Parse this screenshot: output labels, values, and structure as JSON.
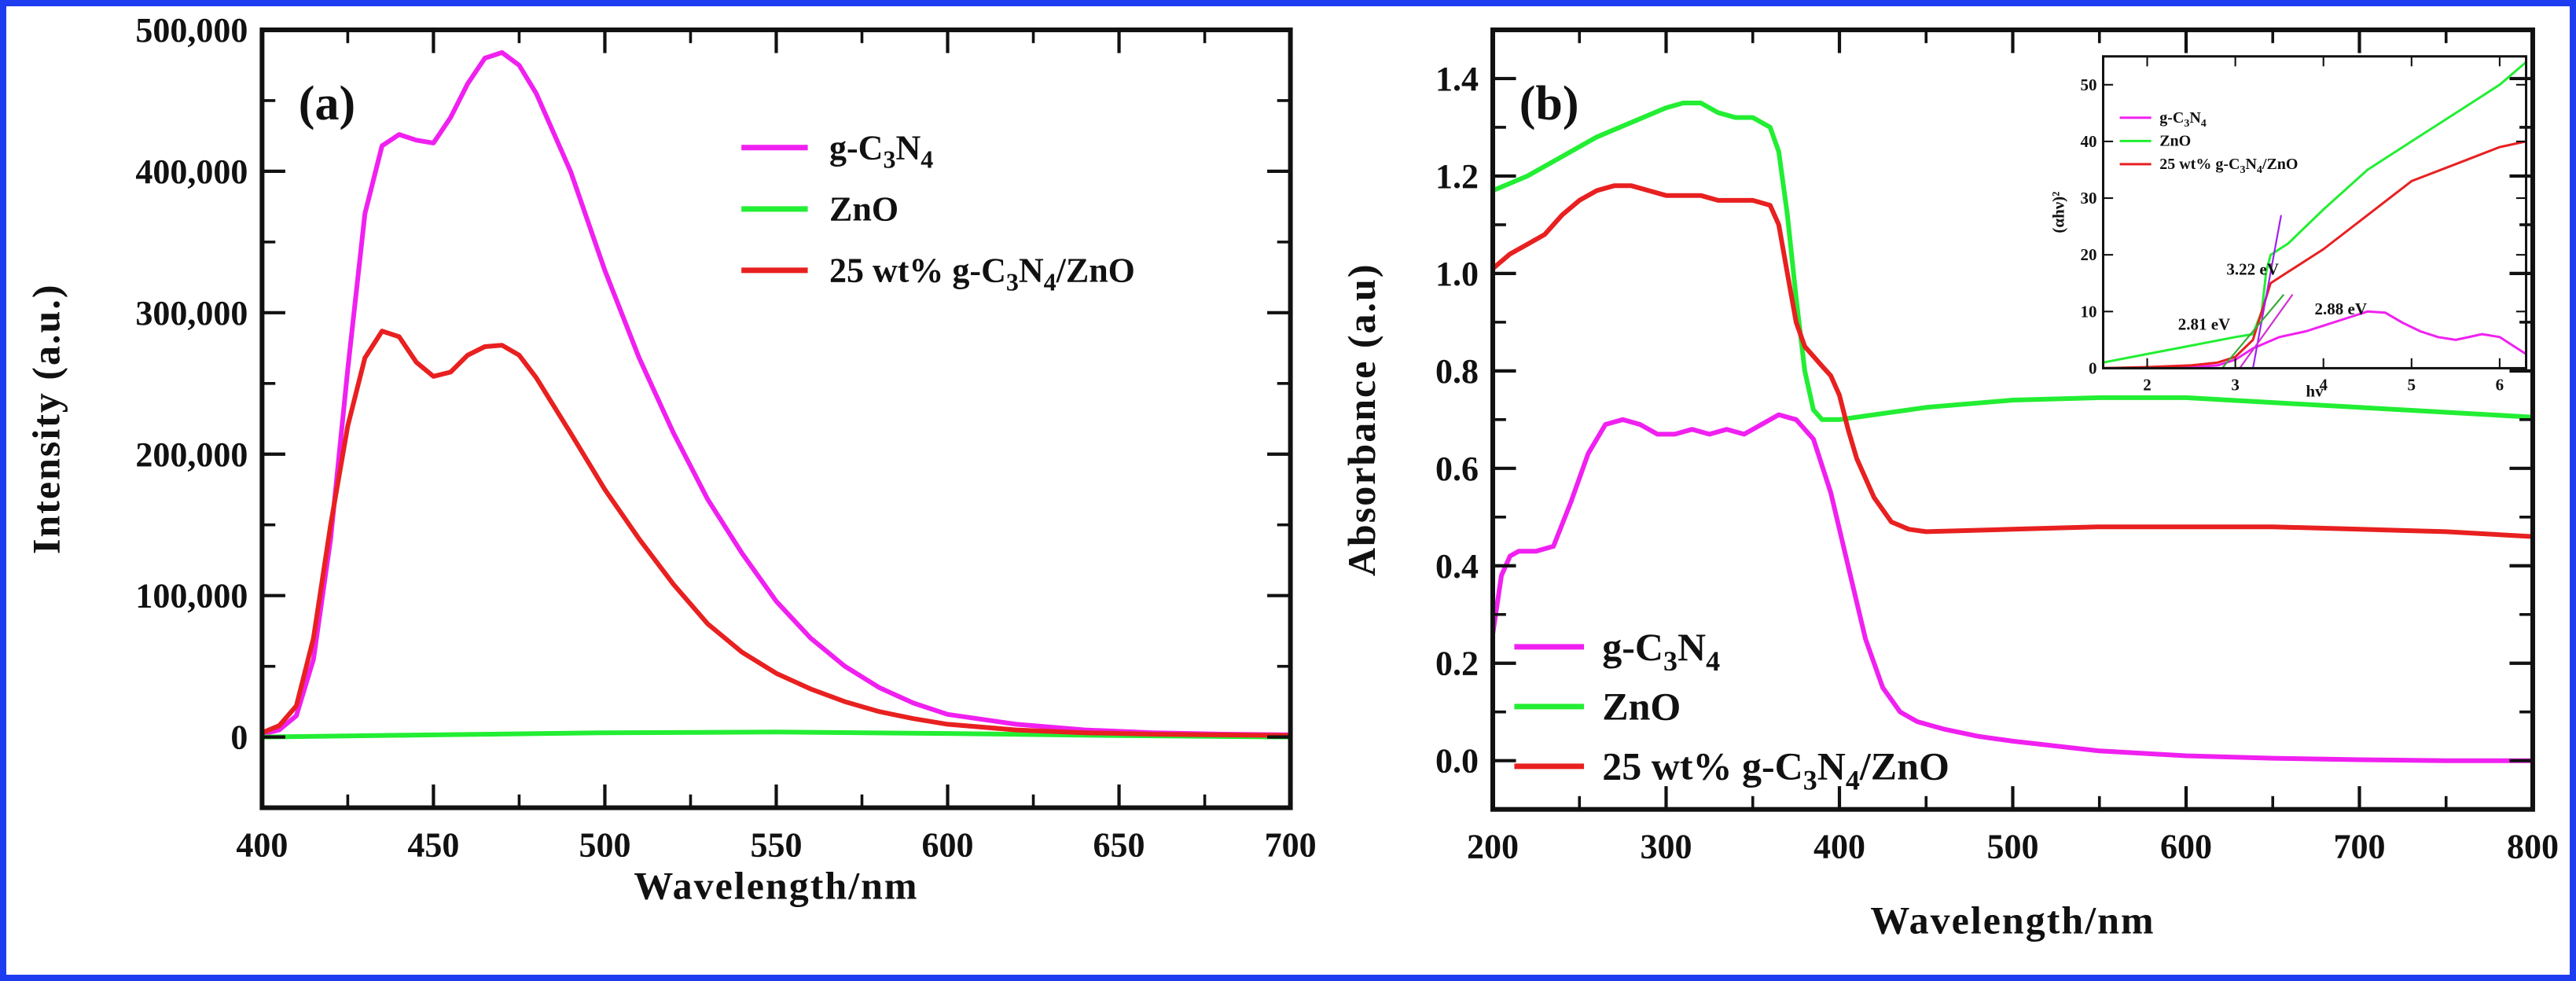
{
  "colors": {
    "border": "#1E3CF0",
    "magenta": "#F020F0",
    "green": "#22EE33",
    "red": "#E82020",
    "axis": "#111111"
  },
  "chart_data": [
    {
      "panel": "(a)",
      "type": "line",
      "xlabel": "Wavelength/nm",
      "ylabel": "Intensity (a.u.)",
      "xlim": [
        400,
        700
      ],
      "ylim": [
        -50000,
        500000
      ],
      "xticks": [
        400,
        450,
        500,
        550,
        600,
        650,
        700
      ],
      "xtick_labels": [
        "400",
        "450",
        "500",
        "550",
        "600",
        "650",
        "700"
      ],
      "yticks": [
        0,
        100000,
        200000,
        300000,
        400000,
        500000
      ],
      "ytick_labels": [
        "0",
        "100,000",
        "200,000",
        "300,000",
        "400,000",
        "500,000"
      ],
      "legend": [
        {
          "text": "g-C3N4",
          "parts": [
            "g-C",
            "3",
            "N",
            "4"
          ],
          "color": "magenta"
        },
        {
          "text": "ZnO",
          "parts": [
            "ZnO"
          ],
          "color": "green"
        },
        {
          "text": "25 wt% g-C3N4/ZnO",
          "parts": [
            "25 wt% g-C",
            "3",
            "N",
            "4",
            "/ZnO"
          ],
          "color": "red"
        }
      ],
      "series": [
        {
          "name": "g-C3N4",
          "color": "magenta",
          "x": [
            400,
            405,
            410,
            415,
            420,
            425,
            430,
            435,
            440,
            445,
            450,
            455,
            460,
            465,
            470,
            475,
            480,
            490,
            500,
            510,
            520,
            530,
            540,
            550,
            560,
            570,
            580,
            590,
            600,
            620,
            640,
            660,
            680,
            700
          ],
          "y": [
            2000,
            5000,
            15000,
            55000,
            140000,
            260000,
            370000,
            418000,
            426000,
            422000,
            420000,
            438000,
            462000,
            480000,
            484000,
            475000,
            455000,
            400000,
            330000,
            268000,
            215000,
            168000,
            130000,
            96000,
            70000,
            50000,
            35000,
            24000,
            16000,
            9000,
            5000,
            3000,
            2000,
            1500
          ]
        },
        {
          "name": "ZnO",
          "color": "green",
          "x": [
            400,
            450,
            500,
            550,
            600,
            650,
            700
          ],
          "y": [
            0,
            1500,
            3000,
            3500,
            2500,
            1000,
            0
          ]
        },
        {
          "name": "25 wt% g-C3N4/ZnO",
          "color": "red",
          "x": [
            400,
            405,
            410,
            415,
            420,
            425,
            430,
            435,
            440,
            445,
            450,
            455,
            460,
            465,
            470,
            475,
            480,
            490,
            500,
            510,
            520,
            530,
            540,
            550,
            560,
            570,
            580,
            590,
            600,
            620,
            640,
            660,
            680,
            700
          ],
          "y": [
            3000,
            8000,
            22000,
            70000,
            150000,
            220000,
            268000,
            287000,
            283000,
            265000,
            255000,
            258000,
            270000,
            276000,
            277000,
            270000,
            254000,
            215000,
            175000,
            140000,
            108000,
            80000,
            60000,
            45000,
            34000,
            25000,
            18000,
            13000,
            9000,
            5000,
            3000,
            2000,
            1500,
            1000
          ]
        }
      ]
    },
    {
      "panel": "(b)",
      "type": "line",
      "xlabel": "Wavelength/nm",
      "ylabel": "Absorbance (a.u)",
      "xlim": [
        200,
        800
      ],
      "ylim": [
        -0.1,
        1.5
      ],
      "xticks": [
        200,
        300,
        400,
        500,
        600,
        700,
        800
      ],
      "xtick_labels": [
        "200",
        "300",
        "400",
        "500",
        "600",
        "700",
        "800"
      ],
      "yticks": [
        0.0,
        0.2,
        0.4,
        0.6,
        0.8,
        1.0,
        1.2,
        1.4
      ],
      "ytick_labels": [
        "0.0",
        "0.2",
        "0.4",
        "0.6",
        "0.8",
        "1.0",
        "1.2",
        "1.4"
      ],
      "legend": [
        {
          "text": "g-C3N4",
          "parts": [
            "g-C",
            "3",
            "N",
            "4"
          ],
          "color": "magenta"
        },
        {
          "text": "ZnO",
          "parts": [
            "ZnO"
          ],
          "color": "green"
        },
        {
          "text": "25 wt% g-C3N4/ZnO",
          "parts": [
            "25 wt% g-C",
            "3",
            "N",
            "4",
            "/ZnO"
          ],
          "color": "red"
        }
      ],
      "series": [
        {
          "name": "g-C3N4",
          "color": "magenta",
          "x": [
            200,
            205,
            210,
            215,
            225,
            235,
            245,
            255,
            265,
            275,
            285,
            295,
            305,
            315,
            325,
            335,
            345,
            355,
            365,
            375,
            385,
            395,
            405,
            415,
            425,
            435,
            445,
            460,
            480,
            500,
            550,
            600,
            650,
            700,
            750,
            800
          ],
          "y": [
            0.26,
            0.38,
            0.42,
            0.43,
            0.43,
            0.44,
            0.53,
            0.63,
            0.69,
            0.7,
            0.69,
            0.67,
            0.67,
            0.68,
            0.67,
            0.68,
            0.67,
            0.69,
            0.71,
            0.7,
            0.66,
            0.55,
            0.4,
            0.25,
            0.15,
            0.1,
            0.08,
            0.065,
            0.05,
            0.04,
            0.02,
            0.01,
            0.005,
            0.002,
            0.0,
            0.0
          ]
        },
        {
          "name": "ZnO",
          "color": "green",
          "x": [
            200,
            220,
            240,
            260,
            280,
            300,
            310,
            320,
            330,
            340,
            350,
            360,
            365,
            370,
            375,
            380,
            385,
            390,
            395,
            400,
            420,
            450,
            500,
            550,
            600,
            650,
            700,
            750,
            800
          ],
          "y": [
            1.17,
            1.2,
            1.24,
            1.28,
            1.31,
            1.34,
            1.35,
            1.35,
            1.33,
            1.32,
            1.32,
            1.3,
            1.25,
            1.12,
            0.95,
            0.8,
            0.72,
            0.7,
            0.7,
            0.7,
            0.71,
            0.725,
            0.74,
            0.745,
            0.745,
            0.735,
            0.725,
            0.715,
            0.705
          ]
        },
        {
          "name": "25 wt% g-C3N4/ZnO",
          "color": "red",
          "x": [
            200,
            210,
            220,
            230,
            240,
            250,
            260,
            270,
            280,
            290,
            300,
            310,
            320,
            330,
            340,
            350,
            360,
            365,
            370,
            375,
            380,
            385,
            390,
            395,
            400,
            405,
            410,
            420,
            430,
            440,
            450,
            500,
            550,
            600,
            650,
            700,
            750,
            800
          ],
          "y": [
            1.01,
            1.04,
            1.06,
            1.08,
            1.12,
            1.15,
            1.17,
            1.18,
            1.18,
            1.17,
            1.16,
            1.16,
            1.16,
            1.15,
            1.15,
            1.15,
            1.14,
            1.1,
            1.0,
            0.9,
            0.85,
            0.83,
            0.81,
            0.79,
            0.75,
            0.68,
            0.62,
            0.54,
            0.49,
            0.475,
            0.47,
            0.475,
            0.48,
            0.48,
            0.48,
            0.475,
            0.47,
            0.46
          ]
        }
      ]
    },
    {
      "panel": "inset",
      "type": "line",
      "xlabel": "hv",
      "ylabel": "(αhν)²",
      "xlim": [
        1.5,
        6.3
      ],
      "ylim": [
        0,
        55
      ],
      "xticks": [
        2,
        3,
        4,
        5,
        6
      ],
      "xtick_labels": [
        "2",
        "3",
        "4",
        "5",
        "6"
      ],
      "yticks": [
        0,
        10,
        20,
        30,
        40,
        50
      ],
      "ytick_labels": [
        "0",
        "10",
        "20",
        "30",
        "40",
        "50"
      ],
      "legend": [
        {
          "text": "g-C3N4",
          "parts": [
            "g-C",
            "3",
            "N",
            "4"
          ],
          "color": "magenta"
        },
        {
          "text": "ZnO",
          "parts": [
            "ZnO"
          ],
          "color": "green"
        },
        {
          "text": "25 wt% g-C3N4/ZnO",
          "parts": [
            "25 wt% g-C",
            "3",
            "N",
            "4",
            "/ZnO"
          ],
          "color": "red"
        }
      ],
      "annotations": [
        {
          "text": "3.22 eV",
          "x": 2.9,
          "y": 16.5
        },
        {
          "text": "2.81 eV",
          "x": 2.35,
          "y": 6.8
        },
        {
          "text": "2.88 eV",
          "x": 3.9,
          "y": 9.5
        }
      ],
      "tangents": [
        {
          "color": "#A020F0",
          "x": [
            3.2,
            3.52
          ],
          "y": [
            0,
            27
          ]
        },
        {
          "color": "#3AAA3A",
          "x": [
            2.85,
            3.55
          ],
          "y": [
            0,
            13
          ]
        },
        {
          "color": "#D030D0",
          "x": [
            3.05,
            3.65
          ],
          "y": [
            0,
            13
          ]
        }
      ],
      "series": [
        {
          "name": "g-C3N4",
          "color": "magenta",
          "x": [
            1.5,
            2.0,
            2.5,
            2.8,
            3.0,
            3.2,
            3.5,
            3.8,
            4.0,
            4.3,
            4.5,
            4.7,
            4.9,
            5.1,
            5.3,
            5.5,
            5.8,
            6.0,
            6.2,
            6.3
          ],
          "y": [
            0,
            0.1,
            0.2,
            0.5,
            1.5,
            3.5,
            5.5,
            6.5,
            7.5,
            9.0,
            10.0,
            9.8,
            8.0,
            6.5,
            5.5,
            5.0,
            6.0,
            5.5,
            3.5,
            2.5
          ]
        },
        {
          "name": "ZnO",
          "color": "green",
          "x": [
            1.5,
            2.0,
            2.5,
            3.0,
            3.2,
            3.3,
            3.35,
            3.4,
            3.6,
            4.0,
            4.5,
            5.0,
            5.5,
            6.0,
            6.3
          ],
          "y": [
            1,
            2.5,
            4,
            5.5,
            6,
            10,
            17,
            20,
            22,
            28,
            35,
            40,
            45,
            50,
            54
          ]
        },
        {
          "name": "25 wt% g-C3N4/ZnO",
          "color": "red",
          "x": [
            1.5,
            2.0,
            2.5,
            2.8,
            3.0,
            3.2,
            3.3,
            3.4,
            3.6,
            4.0,
            4.5,
            5.0,
            5.5,
            6.0,
            6.3
          ],
          "y": [
            0,
            0.2,
            0.5,
            1,
            2,
            5,
            10,
            15,
            17,
            21,
            27,
            33,
            36,
            39,
            40
          ]
        }
      ]
    }
  ]
}
